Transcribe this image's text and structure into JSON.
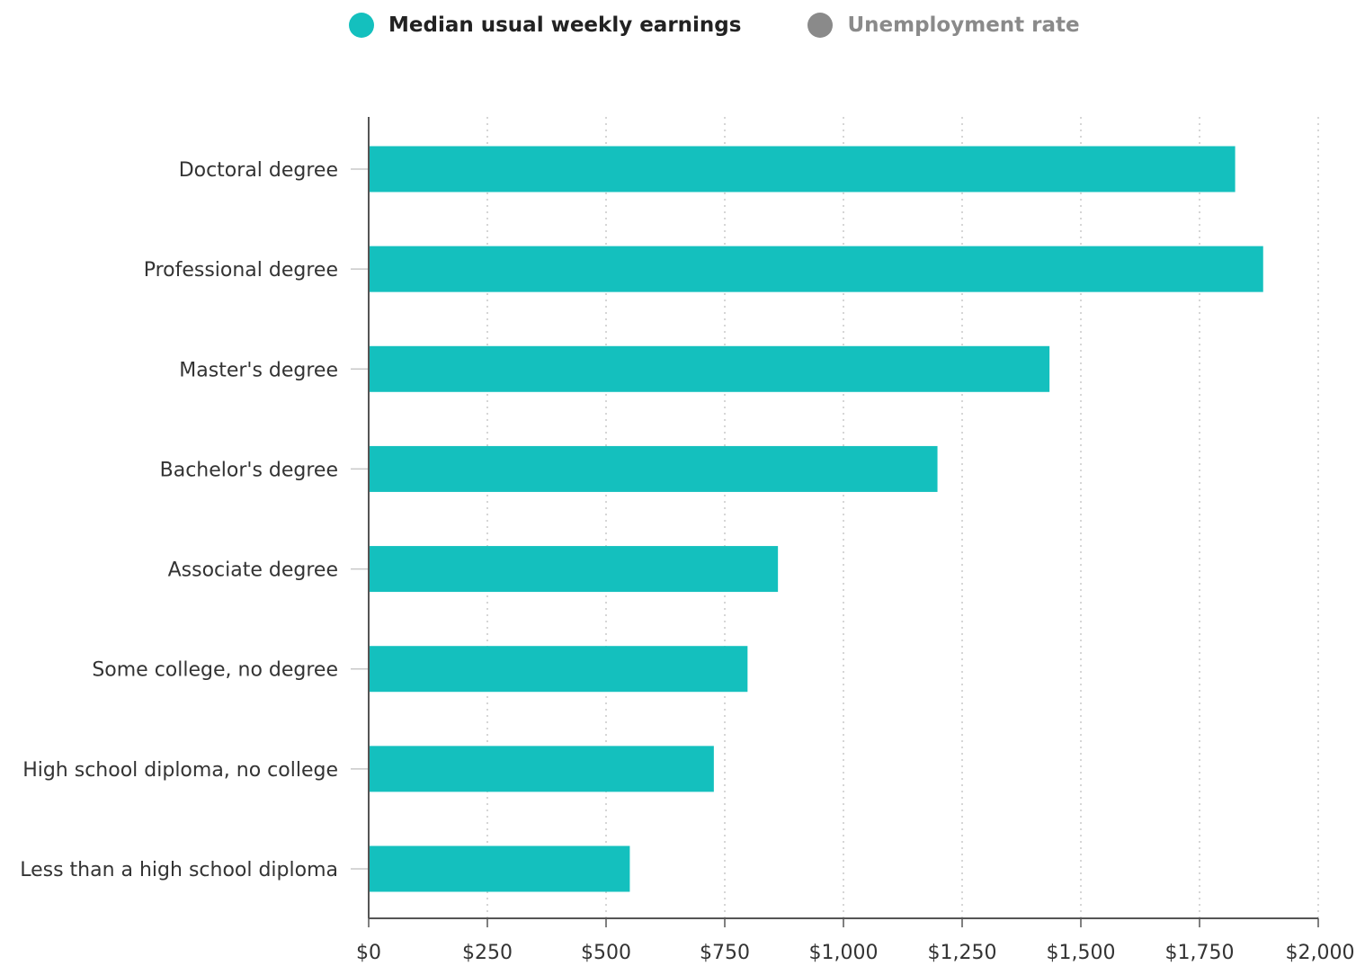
{
  "colors": {
    "primary_series": "#14c0be",
    "inactive_series": "#8a8a8a",
    "legend_active_text": "#222222",
    "legend_inactive_text": "#8a8a8a",
    "axis": "#555555",
    "grid": "#c8c8c8"
  },
  "legend": [
    {
      "label": "Median usual weekly earnings",
      "active": true
    },
    {
      "label": "Unemployment rate",
      "active": false
    }
  ],
  "chart_data": {
    "type": "bar",
    "orientation": "horizontal",
    "categories": [
      "Doctoral degree",
      "Professional degree",
      "Master's degree",
      "Bachelor's degree",
      "Associate degree",
      "Some college, no degree",
      "High school diploma, no college",
      "Less than a high school diploma"
    ],
    "series": [
      {
        "name": "Median usual weekly earnings",
        "values": [
          1825,
          1884,
          1434,
          1198,
          862,
          798,
          727,
          550
        ]
      }
    ],
    "xlim": [
      0,
      2000
    ],
    "x_ticks": [
      0,
      250,
      500,
      750,
      1000,
      1250,
      1500,
      1750,
      2000
    ],
    "x_tick_labels": [
      "$0",
      "$250",
      "$500",
      "$750",
      "$1,000",
      "$1,250",
      "$1,500",
      "$1,750",
      "$2,000"
    ],
    "grid": "vertical dotted",
    "legend_position": "top"
  }
}
